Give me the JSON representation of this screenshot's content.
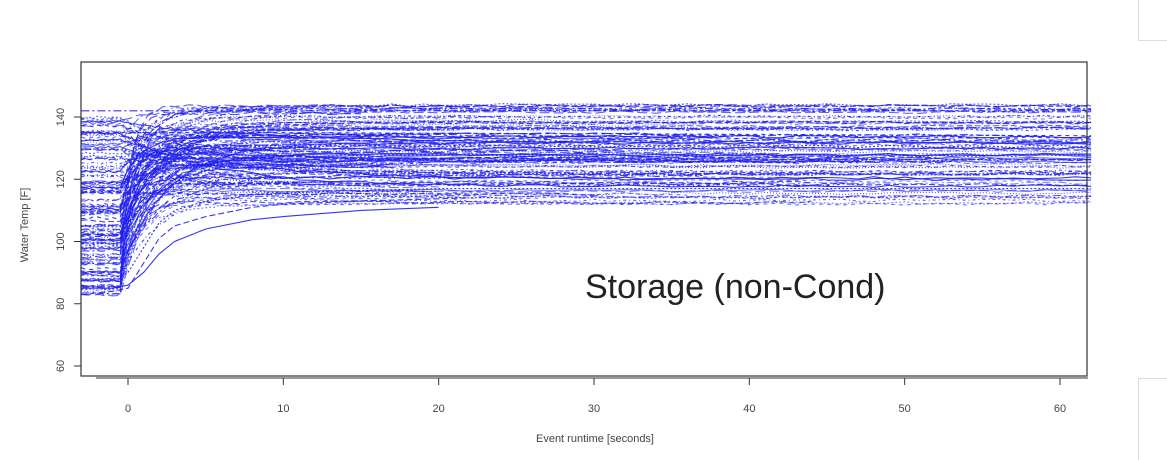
{
  "chart_data": {
    "type": "line",
    "title": "",
    "xlabel": "Event runtime [seconds]",
    "ylabel": "Water Temp [F]",
    "xlim": [
      -3,
      62
    ],
    "ylim": [
      58,
      156
    ],
    "xticks": [
      0,
      10,
      20,
      30,
      40,
      50,
      60
    ],
    "yticks": [
      60,
      80,
      100,
      120,
      140
    ],
    "annotation": "Storage (non-Cond)",
    "line_color": "#2020f0",
    "grid": false,
    "legend": "none",
    "series_count": 140,
    "series": [
      {
        "x": [
          -3,
          -1,
          0,
          1,
          2,
          3,
          5,
          8,
          10,
          15,
          20
        ],
        "y": [
          85,
          85,
          86,
          90,
          96,
          100,
          104,
          107,
          108,
          110,
          111
        ]
      },
      {
        "x": [
          -3,
          -1,
          0,
          1,
          2,
          3,
          5,
          8,
          10,
          15,
          22
        ],
        "y": [
          83,
          84,
          85,
          93,
          101,
          105,
          108,
          111,
          112,
          113,
          114
        ]
      },
      {
        "x": [
          -3,
          -1,
          0,
          1,
          2,
          3,
          5,
          8,
          12,
          20,
          40,
          62
        ],
        "y": [
          88,
          88,
          90,
          98,
          106,
          110,
          113,
          115,
          116,
          117,
          117,
          117
        ]
      },
      {
        "x": [
          -3,
          0,
          2,
          5,
          62
        ],
        "y": [
          142,
          142,
          142,
          142,
          142
        ]
      },
      {
        "x": [
          -3,
          0,
          2,
          5,
          10,
          62
        ],
        "y": [
          135,
          135,
          135,
          135,
          135,
          134
        ]
      }
    ]
  }
}
